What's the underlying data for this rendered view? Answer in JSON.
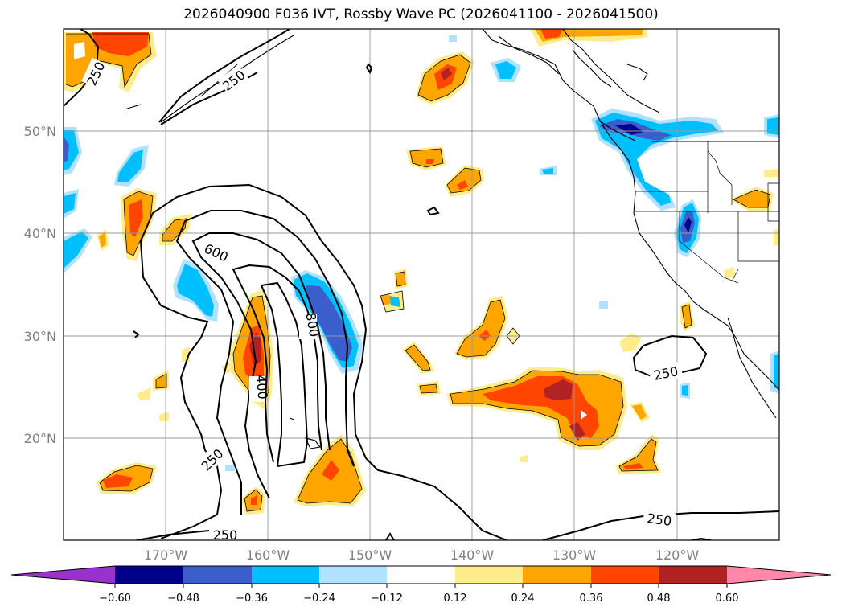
{
  "title": "2026040900 F036 IVT, Rossby Wave PC (2026041100 - 2026041500)",
  "map": {
    "projection": "equirectangular",
    "lon_range": [
      -180,
      -110
    ],
    "lat_range": [
      10,
      60
    ],
    "lat_ticks": [
      {
        "value": 20,
        "label": "20°N"
      },
      {
        "value": 30,
        "label": "30°N"
      },
      {
        "value": 40,
        "label": "40°N"
      },
      {
        "value": 50,
        "label": "50°N"
      }
    ],
    "lon_ticks": [
      {
        "value": -170,
        "label": "170°W"
      },
      {
        "value": -160,
        "label": "160°W"
      },
      {
        "value": -150,
        "label": "150°W"
      },
      {
        "value": -140,
        "label": "140°W"
      },
      {
        "value": -130,
        "label": "130°W"
      },
      {
        "value": -120,
        "label": "120°W"
      }
    ],
    "grid": true,
    "ivt_contour_labels": [
      "250",
      "250",
      "600",
      "800",
      "400",
      "250",
      "250",
      "250",
      "250"
    ]
  },
  "colorbar": {
    "ticks": [
      "−0.60",
      "−0.48",
      "−0.36",
      "−0.24",
      "−0.12",
      "0.12",
      "0.24",
      "0.36",
      "0.48",
      "0.60"
    ],
    "colors": [
      "#9932cc",
      "#00008b",
      "#3a5fcd",
      "#00bfff",
      "#b0e2ff",
      "#ffffff",
      "#ffec8b",
      "#ffa500",
      "#ff4500",
      "#b22222",
      "#ff88aa"
    ],
    "extend": "both"
  },
  "colors": {
    "neg_light": "#b0e2ff",
    "neg_mid": "#00bfff",
    "neg_strong": "#3a5fcd",
    "neg_max": "#00008b",
    "pos_light": "#ffec8b",
    "pos_mid": "#ffa500",
    "pos_strong": "#ff4500",
    "pos_max": "#b22222"
  }
}
